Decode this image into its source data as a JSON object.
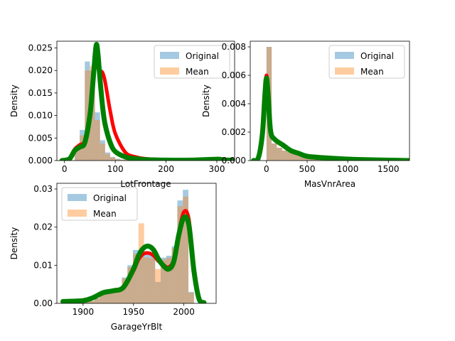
{
  "colors": {
    "original": "#1f77b4",
    "mean": "#ff7f0e",
    "kde_original": "#ff0000",
    "kde_mean": "#008000"
  },
  "chart_data": [
    {
      "type": "histogram+kde",
      "xlabel": "LotFrontage",
      "ylabel": "Density",
      "xlim": [
        -15,
        335
      ],
      "ylim": [
        0,
        0.0265
      ],
      "xticks": [
        0,
        100,
        200,
        300
      ],
      "yticks": [
        0.0,
        0.005,
        0.01,
        0.015,
        0.02,
        0.025
      ],
      "ytick_labels": [
        "0.000",
        "0.005",
        "0.010",
        "0.015",
        "0.020",
        "0.025"
      ],
      "legend": {
        "placement": "top-right",
        "entries": [
          "Original",
          "Mean"
        ]
      },
      "bins": {
        "start": 20,
        "width": 10
      },
      "series": [
        {
          "name": "Original",
          "values": [
            0.003,
            0.0068,
            0.022,
            0.02,
            0.0107,
            0.0045,
            0.0018,
            0.0008,
            0.0004,
            0.0002,
            0.0002,
            0.0001,
            0.0001,
            0.0001,
            0,
            0,
            0,
            0,
            0,
            0,
            0,
            0,
            0,
            0,
            0,
            0,
            0,
            0,
            0.0001,
            0.0001
          ]
        },
        {
          "name": "Mean",
          "values": [
            0.0024,
            0.0056,
            0.02,
            0.021,
            0.009,
            0.0038,
            0.0015,
            0.0007,
            0.0003,
            0.0002,
            0.0002,
            0.0001,
            0.0001,
            0.0001,
            0,
            0,
            0,
            0,
            0,
            0,
            0,
            0,
            0,
            0,
            0,
            0,
            0,
            0,
            0.0001,
            0.0001
          ]
        }
      ],
      "kde": [
        {
          "series": "Original",
          "x": [
            -5,
            10,
            20,
            30,
            40,
            50,
            55,
            60,
            65,
            70,
            75,
            80,
            90,
            100,
            120,
            140,
            160,
            200,
            250,
            300,
            310,
            320,
            330
          ],
          "y": [
            0,
            0.0005,
            0.0025,
            0.0035,
            0.0045,
            0.011,
            0.017,
            0.0205,
            0.0208,
            0.02,
            0.0195,
            0.0175,
            0.011,
            0.006,
            0.0018,
            0.0008,
            0.0004,
            0.0002,
            0.0001,
            0.0004,
            0.0003,
            0.0002,
            0.0001
          ]
        },
        {
          "series": "Mean",
          "x": [
            -5,
            10,
            20,
            30,
            40,
            50,
            55,
            60,
            63,
            66,
            70,
            75,
            80,
            90,
            100,
            120,
            140,
            160,
            200,
            250,
            300,
            310,
            320,
            330
          ],
          "y": [
            0,
            0.0004,
            0.0022,
            0.003,
            0.004,
            0.01,
            0.016,
            0.023,
            0.0258,
            0.0235,
            0.018,
            0.012,
            0.008,
            0.004,
            0.002,
            0.0008,
            0.0004,
            0.0002,
            0.0001,
            0.0001,
            0.0003,
            0.0002,
            0.0001,
            0.0001
          ]
        }
      ]
    },
    {
      "type": "histogram+kde",
      "xlabel": "MasVnrArea",
      "ylabel": "Density",
      "xlim": [
        -200,
        1760
      ],
      "ylim": [
        0,
        0.0084
      ],
      "xticks": [
        0,
        500,
        1000,
        1500
      ],
      "yticks": [
        0.0,
        0.002,
        0.004,
        0.006,
        0.008
      ],
      "ytick_labels": [
        "0.000",
        "0.002",
        "0.004",
        "0.006",
        "0.008"
      ],
      "legend": {
        "placement": "top-right",
        "entries": [
          "Original",
          "Mean"
        ]
      },
      "bins": {
        "start": 0,
        "width": 64
      },
      "series": [
        {
          "name": "Original",
          "values": [
            0.008,
            0.0012,
            0.0009,
            0.0007,
            0.0006,
            0.0005,
            0.0004,
            0.00035,
            0.0003,
            0.00025,
            0.0002,
            0.00015,
            0.0001,
            0.0001,
            0.0001,
            8e-05,
            6e-05,
            5e-05,
            4e-05,
            4e-05,
            3e-05,
            3e-05,
            2e-05,
            2e-05,
            2e-05,
            1e-05,
            1e-05
          ]
        },
        {
          "name": "Mean",
          "values": [
            0.008,
            0.0012,
            0.0009,
            0.0007,
            0.0006,
            0.0005,
            0.0004,
            0.00035,
            0.0003,
            0.00025,
            0.0002,
            0.00015,
            0.0001,
            0.0001,
            0.0001,
            8e-05,
            6e-05,
            5e-05,
            4e-05,
            4e-05,
            3e-05,
            3e-05,
            2e-05,
            2e-05,
            2e-05,
            1e-05,
            1e-05
          ]
        }
      ],
      "kde": [
        {
          "series": "Original",
          "x": [
            -160,
            -100,
            -50,
            -20,
            0,
            20,
            50,
            100,
            200,
            300,
            400,
            500,
            700,
            1000,
            1300,
            1600,
            1750
          ],
          "y": [
            0,
            0.0002,
            0.002,
            0.0048,
            0.006,
            0.0048,
            0.0022,
            0.0015,
            0.0011,
            0.0007,
            0.0005,
            0.0003,
            0.0002,
            0.0001,
            5e-05,
            2e-05,
            0
          ]
        },
        {
          "series": "Mean",
          "x": [
            -160,
            -100,
            -50,
            -20,
            0,
            20,
            50,
            100,
            200,
            300,
            400,
            500,
            700,
            1000,
            1300,
            1600,
            1750
          ],
          "y": [
            0,
            0.0002,
            0.0019,
            0.0046,
            0.0058,
            0.0046,
            0.0021,
            0.0015,
            0.0011,
            0.0007,
            0.0005,
            0.0003,
            0.0002,
            0.0001,
            5e-05,
            2e-05,
            0
          ]
        }
      ]
    },
    {
      "type": "histogram+kde",
      "xlabel": "GarageYrBlt",
      "ylabel": "Density",
      "xlim": [
        1874,
        2032
      ],
      "ylim": [
        0,
        0.0315
      ],
      "xticks": [
        1900,
        1950,
        2000
      ],
      "yticks": [
        0.0,
        0.01,
        0.02,
        0.03
      ],
      "ytick_labels": [
        "0.00",
        "0.01",
        "0.02",
        "0.03"
      ],
      "legend": {
        "placement": "top-left",
        "entries": [
          "Original",
          "Mean"
        ]
      },
      "bins": {
        "start": 1900,
        "width": 5.5
      },
      "series": [
        {
          "name": "Original",
          "values": [
            0.0005,
            0.0006,
            0.0013,
            0.0028,
            0.0032,
            0.0032,
            0.0037,
            0.0068,
            0.01,
            0.014,
            0.0133,
            0.0128,
            0.0125,
            0.0056,
            0.012,
            0.0125,
            0.015,
            0.027,
            0.0298,
            0.003
          ]
        },
        {
          "name": "Mean",
          "values": [
            0.0005,
            0.0006,
            0.0013,
            0.0028,
            0.0032,
            0.0032,
            0.0036,
            0.0065,
            0.0095,
            0.013,
            0.021,
            0.012,
            0.0118,
            0.009,
            0.0115,
            0.012,
            0.0145,
            0.0255,
            0.028,
            0.0028
          ]
        }
      ],
      "kde": [
        {
          "series": "Original",
          "x": [
            1880,
            1900,
            1910,
            1920,
            1930,
            1940,
            1950,
            1955,
            1960,
            1965,
            1970,
            1975,
            1980,
            1985,
            1990,
            1995,
            2000,
            2005,
            2010,
            2015,
            2020
          ],
          "y": [
            0.0005,
            0.0007,
            0.0015,
            0.0028,
            0.0033,
            0.004,
            0.0085,
            0.0115,
            0.013,
            0.0132,
            0.0125,
            0.011,
            0.01,
            0.0095,
            0.0115,
            0.0185,
            0.024,
            0.022,
            0.009,
            0.0015,
            0.0003
          ]
        },
        {
          "series": "Mean",
          "x": [
            1880,
            1900,
            1910,
            1920,
            1930,
            1940,
            1950,
            1955,
            1960,
            1965,
            1970,
            1975,
            1980,
            1985,
            1990,
            1995,
            2000,
            2005,
            2010,
            2015,
            2020
          ],
          "y": [
            0.0005,
            0.0007,
            0.0015,
            0.0028,
            0.0033,
            0.0042,
            0.009,
            0.0125,
            0.0145,
            0.015,
            0.014,
            0.0115,
            0.0098,
            0.009,
            0.011,
            0.018,
            0.0225,
            0.0205,
            0.0085,
            0.0012,
            0.0002
          ]
        }
      ]
    }
  ]
}
